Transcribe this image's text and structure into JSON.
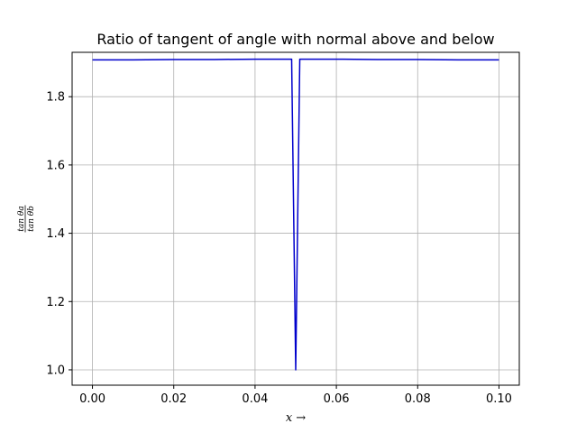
{
  "chart_data": {
    "type": "line",
    "title": "Ratio of tangent of angle with normal above and below",
    "xlabel": "x →",
    "ylabel": {
      "numerator": "tan θa",
      "denominator": "tan θb"
    },
    "xlim": [
      -0.005,
      0.105
    ],
    "ylim": [
      0.955,
      1.93
    ],
    "x_ticks": [
      0.0,
      0.02,
      0.04,
      0.06,
      0.08,
      0.1
    ],
    "x_tick_labels": [
      "0.00",
      "0.02",
      "0.04",
      "0.06",
      "0.08",
      "0.10"
    ],
    "y_ticks": [
      1.0,
      1.2,
      1.4,
      1.6,
      1.8
    ],
    "y_tick_labels": [
      "1.0",
      "1.2",
      "1.4",
      "1.6",
      "1.8"
    ],
    "grid": true,
    "series": [
      {
        "color": "#0000cc",
        "x": [
          0.0,
          0.01,
          0.02,
          0.03,
          0.04,
          0.049,
          0.05,
          0.051,
          0.06,
          0.07,
          0.08,
          0.09,
          0.1
        ],
        "y": [
          1.908,
          1.908,
          1.909,
          1.909,
          1.91,
          1.91,
          1.0,
          1.91,
          1.91,
          1.909,
          1.909,
          1.908,
          1.908
        ]
      }
    ]
  }
}
